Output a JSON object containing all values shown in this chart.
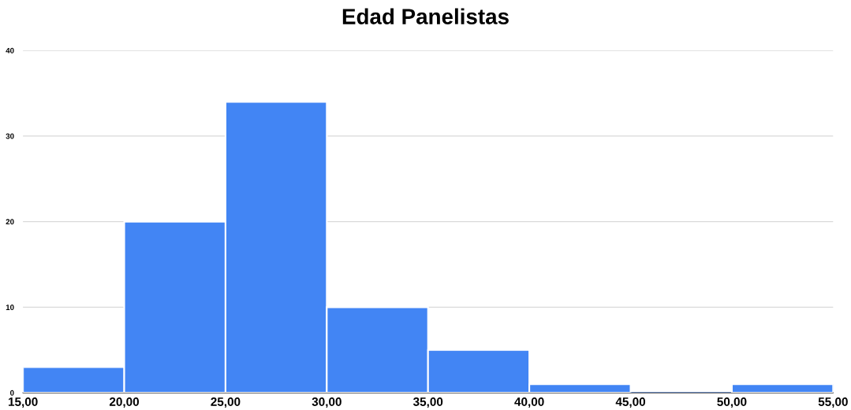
{
  "chart_data": {
    "type": "histogram",
    "title": "Edad Panelistas",
    "bins": [
      15,
      20,
      25,
      30,
      35,
      40,
      45,
      50,
      55
    ],
    "values": [
      3,
      20,
      34,
      10,
      5,
      1,
      0,
      1
    ],
    "color": "#4285f4",
    "xlim": [
      15,
      55
    ],
    "xticks": [
      {
        "value": 15,
        "label": "15,00"
      },
      {
        "value": 20,
        "label": "20,00"
      },
      {
        "value": 25,
        "label": "25,00"
      },
      {
        "value": 30,
        "label": "30,00"
      },
      {
        "value": 35,
        "label": "35,00"
      },
      {
        "value": 40,
        "label": "40,00"
      },
      {
        "value": 45,
        "label": "45,00"
      },
      {
        "value": 50,
        "label": "50,00"
      },
      {
        "value": 55,
        "label": "55,00"
      }
    ],
    "ylim": [
      0,
      40
    ],
    "yticks": [
      0,
      10,
      20,
      30,
      40
    ],
    "grid": "y"
  }
}
